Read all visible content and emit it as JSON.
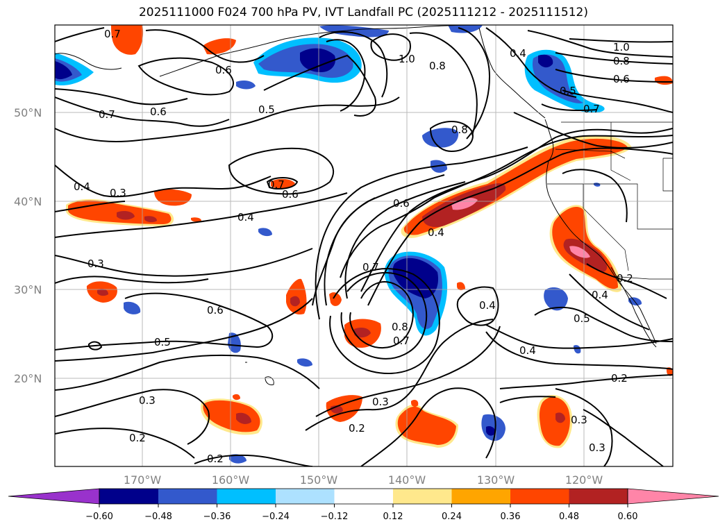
{
  "title": "2025111000 F024 700 hPa PV, IVT Landfall PC (2025111212 - 2025111512)",
  "lat_labels": [
    "50°N",
    "40°N",
    "30°N",
    "20°N"
  ],
  "lon_labels": [
    "170°W",
    "160°W",
    "150°W",
    "140°W",
    "130°W",
    "120°W"
  ],
  "colorbar": {
    "ticks": [
      "−0.60",
      "−0.48",
      "−0.36",
      "−0.24",
      "−0.12",
      "0.12",
      "0.24",
      "0.36",
      "0.48",
      "0.60"
    ],
    "colors": [
      "#9932CC",
      "#00008B",
      "#3359CC",
      "#00BFFF",
      "#ADE1FF",
      "#FFFFFF",
      "#FFE88C",
      "#FFA500",
      "#FF4500",
      "#B22222",
      "#FF85A8"
    ]
  },
  "contour_labels": [
    "0.7",
    "0.6",
    "0.5",
    "0.6",
    "0.7",
    "1.0",
    "0.8",
    "0.4",
    "1.0",
    "0.8",
    "0.6",
    "0.7",
    "0.8",
    "0.5",
    "0.4",
    "0.3",
    "0.4",
    "0.7",
    "0.6",
    "0.6",
    "0.4",
    "0.3",
    "0.7",
    "0.4",
    "0.6",
    "0.5",
    "0.8",
    "0.7",
    "0.4",
    "0.5",
    "0.2",
    "0.3",
    "0.4",
    "0.2",
    "0.3",
    "0.2",
    "0.2",
    "0.3",
    "0.2",
    "0.3"
  ]
}
